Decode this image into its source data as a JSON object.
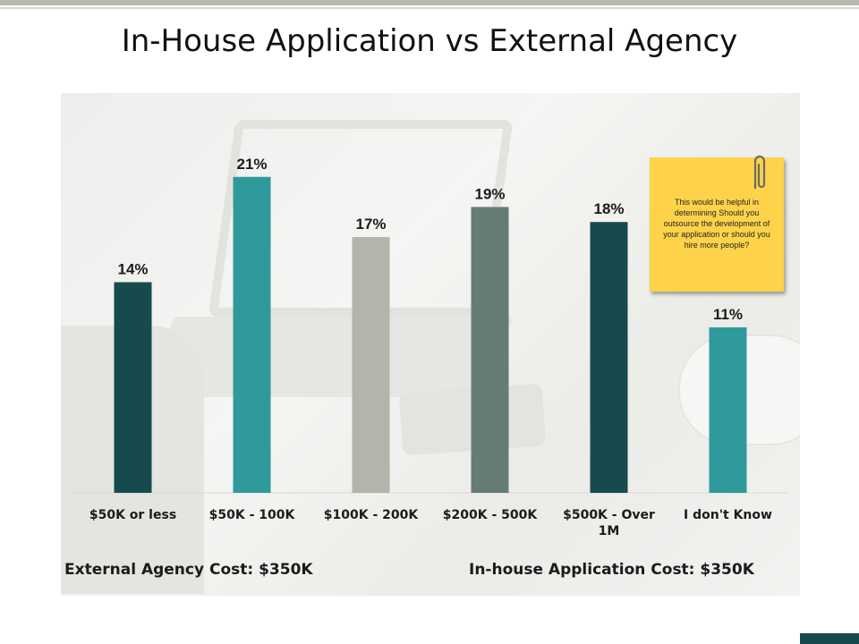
{
  "slide": {
    "title": "In-House Application vs External Agency",
    "note": "This would be helpful in determining Should you outsource the development of your application or should you hire more people?",
    "footer_left": "External Agency Cost: $350K",
    "footer_right": "In-house Application Cost: $350K"
  },
  "chart_data": {
    "type": "bar",
    "categories": [
      "$50K or less",
      "$50K - 100K",
      "$100K - 200K",
      "$200K - 500K",
      "$500K - Over 1M",
      "I don't Know"
    ],
    "values": [
      14,
      21,
      17,
      19,
      18,
      11
    ],
    "data_labels": [
      "14%",
      "21%",
      "17%",
      "19%",
      "18%",
      "11%"
    ],
    "bar_colors": [
      "#174a4c",
      "#2e9a9b",
      "#b4b4ab",
      "#657c75",
      "#174a4c",
      "#2e9a9b"
    ],
    "title": "",
    "xlabel": "",
    "ylabel": "",
    "ylim": [
      0,
      28
    ],
    "grid": false,
    "legend": "none"
  },
  "icons": {
    "paperclip": "paperclip-icon"
  }
}
